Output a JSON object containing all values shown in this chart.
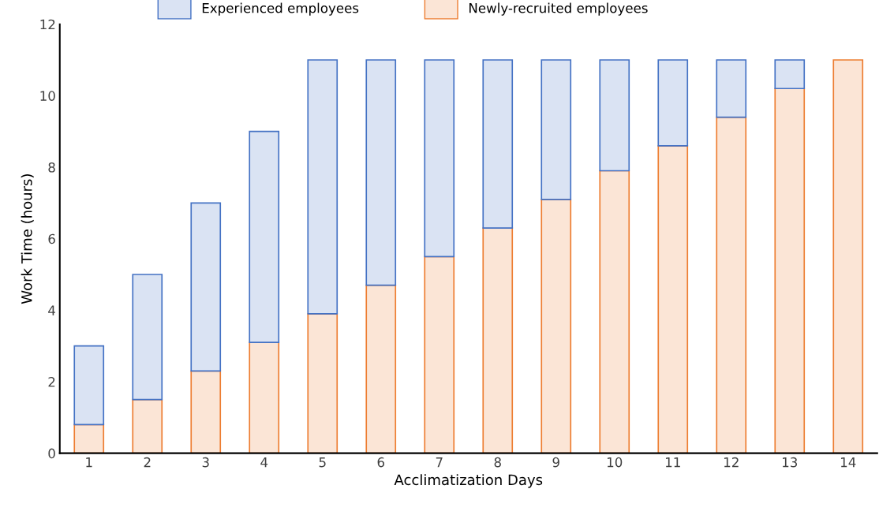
{
  "chart_data": {
    "type": "bar",
    "stacked": true,
    "xlabel": "Acclimatization Days",
    "ylabel": "Work Time (hours)",
    "categories": [
      "1",
      "2",
      "3",
      "4",
      "5",
      "6",
      "7",
      "8",
      "9",
      "10",
      "11",
      "12",
      "13",
      "14"
    ],
    "series": [
      {
        "name": "Newly-recruited employees",
        "color": "#ed7d31",
        "values": [
          0.8,
          1.5,
          2.3,
          3.1,
          3.9,
          4.7,
          5.5,
          6.3,
          7.1,
          7.9,
          8.6,
          9.4,
          10.2,
          11
        ]
      },
      {
        "name": "Experienced employees",
        "color": "#4472c4",
        "values": [
          2.2,
          3.5,
          4.7,
          5.9,
          7.1,
          6.3,
          5.5,
          4.7,
          3.9,
          3.1,
          2.4,
          1.6,
          0.8,
          null
        ]
      }
    ],
    "ylim": [
      0,
      12
    ],
    "yticks": [
      0,
      2,
      4,
      6,
      8,
      10,
      12
    ],
    "grid": false,
    "legend": "top"
  }
}
